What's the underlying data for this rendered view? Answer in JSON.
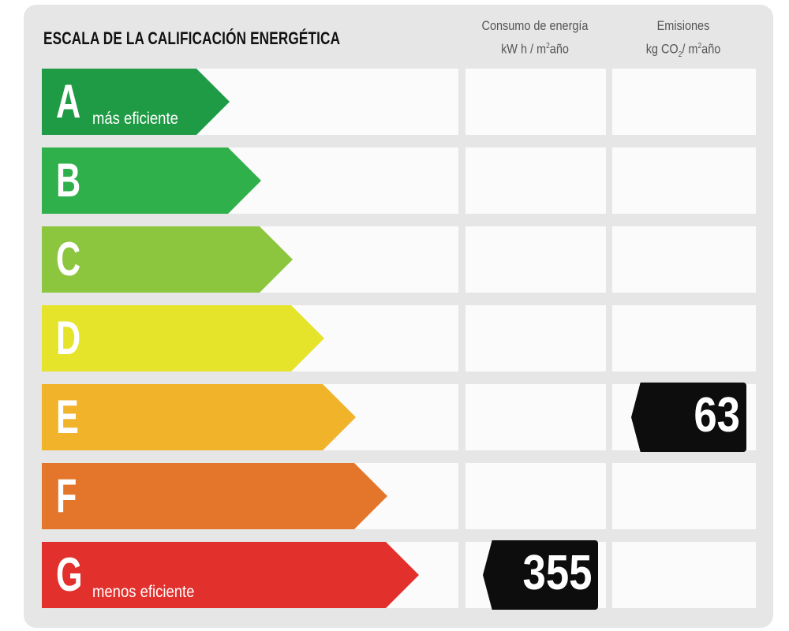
{
  "title": "ESCALA DE LA CALIFICACIÓN ENERGÉTICA",
  "columns": {
    "consumo": {
      "line1": "Consumo de energía",
      "line2_pre": "kW h / m",
      "line2_sup": "2",
      "line2_post": "año"
    },
    "emisiones": {
      "line1": "Emisiones",
      "line2_pre": "kg CO",
      "line2_sub": "2",
      "line2_mid": "/ m",
      "line2_sup": "2",
      "line2_post": "año"
    }
  },
  "chart_data": {
    "type": "bar",
    "title": "ESCALA DE LA CALIFICACIÓN ENERGÉTICA",
    "categories": [
      "A",
      "B",
      "C",
      "D",
      "E",
      "F",
      "G"
    ],
    "labels": {
      "A": "más eficiente",
      "G": "menos eficiente"
    },
    "colors": [
      "#1f9a45",
      "#2fb04a",
      "#8cc63f",
      "#e5e32a",
      "#f0b32a",
      "#e4762b",
      "#e2302d"
    ],
    "consumo": {
      "rating": "G",
      "value": 355
    },
    "emisiones": {
      "rating": "E",
      "value": 63
    }
  }
}
